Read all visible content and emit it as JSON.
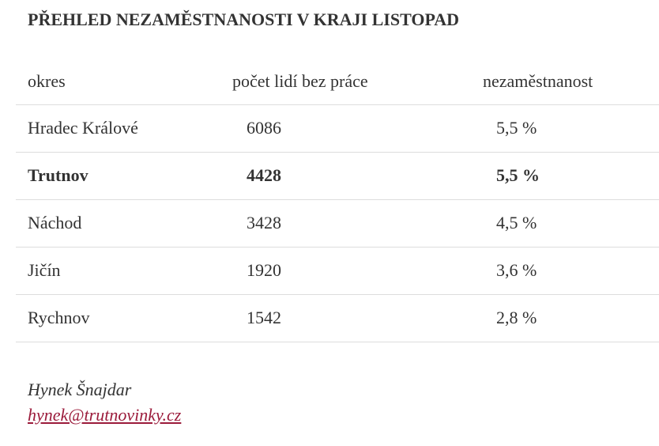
{
  "header": {
    "title": "PŘEHLED NEZAMĚSTNANOSTI V KRAJI LISTOPAD"
  },
  "table": {
    "columns": [
      "okres",
      "počet lidí bez práce",
      "nezaměstnanost"
    ],
    "rows": [
      [
        "Hradec Králové",
        "6086",
        "5,5 %"
      ],
      [
        "Trutnov",
        "4428",
        "5,5 %"
      ],
      [
        "Náchod",
        "3428",
        "4,5 %"
      ],
      [
        "Jičín",
        "1920",
        "3,6 %"
      ],
      [
        "Rychnov",
        "1542",
        "2,8 %"
      ]
    ]
  },
  "footer": {
    "author": "Hynek Šnajdar",
    "email": "hynek@trutnovinky.cz"
  }
}
